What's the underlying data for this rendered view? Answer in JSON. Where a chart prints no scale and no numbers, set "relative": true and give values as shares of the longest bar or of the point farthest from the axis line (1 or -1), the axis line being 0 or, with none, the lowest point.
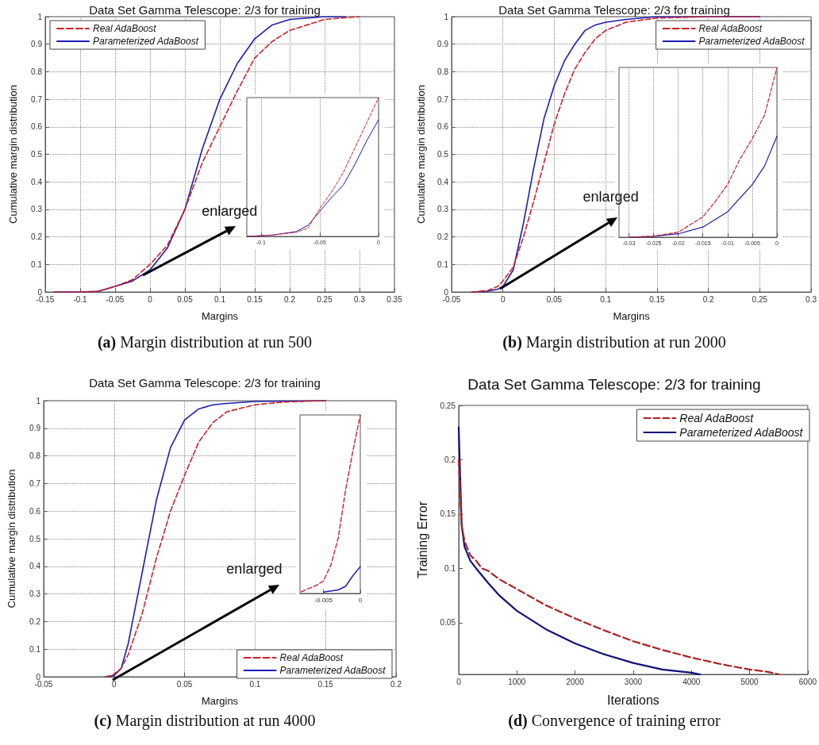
{
  "chart_data": [
    {
      "type": "line",
      "title": "Data Set Gamma Telescope: 2/3 for training",
      "xlabel": "Margins",
      "ylabel": "Cumulative margin distribution",
      "annotations": [
        {
          "text": "enlarged",
          "x": -0.01,
          "y": 0.06
        },
        "(a) Margin distribution at run 500"
      ],
      "xlim": [
        -0.15,
        0.35
      ],
      "ylim": [
        0,
        1
      ],
      "xticks": [
        -0.15,
        -0.1,
        -0.05,
        0,
        0.05,
        0.1,
        0.15,
        0.2,
        0.25,
        0.3,
        0.35
      ],
      "yticks": [
        0,
        0.1,
        0.2,
        0.3,
        0.4,
        0.5,
        0.6,
        0.7,
        0.8,
        0.9,
        1
      ],
      "grid": true,
      "legend": "top left",
      "marker": "none",
      "series": [
        {
          "name": "Real AdaBoost",
          "color": "#d02028",
          "line_style": "dashed",
          "x": [
            -0.137,
            -0.1,
            -0.075,
            -0.05,
            -0.025,
            0,
            0.025,
            0.05,
            0.075,
            0.1,
            0.125,
            0.15,
            0.175,
            0.2,
            0.25,
            0.3
          ],
          "values": [
            0,
            0,
            0.002,
            0.02,
            0.045,
            0.1,
            0.17,
            0.3,
            0.47,
            0.6,
            0.73,
            0.85,
            0.91,
            0.95,
            0.99,
            1
          ]
        },
        {
          "name": "Parameterized AdaBoost",
          "color": "#1c1cb4",
          "line_style": "solid",
          "x": [
            -0.137,
            -0.1,
            -0.075,
            -0.05,
            -0.025,
            0,
            0.025,
            0.05,
            0.075,
            0.1,
            0.125,
            0.15,
            0.175,
            0.2,
            0.25,
            0.28
          ],
          "values": [
            0,
            0,
            0.002,
            0.02,
            0.04,
            0.08,
            0.16,
            0.3,
            0.52,
            0.7,
            0.83,
            0.92,
            0.97,
            0.99,
            1,
            1
          ]
        }
      ]
    },
    {
      "type": "line",
      "relative": true,
      "tick_labels": "x",
      "xlim": [
        -0.112,
        0
      ],
      "xticks": [
        -0.1,
        -0.05,
        0
      ],
      "grid": "x",
      "marker": "none",
      "series": [
        {
          "color": "#d02028",
          "line_style": "dashed",
          "x": [
            -0.112,
            -0.09,
            -0.07,
            -0.06,
            -0.05,
            -0.04,
            -0.03,
            -0.02,
            -0.01,
            0
          ],
          "values": [
            0,
            0.01,
            0.03,
            0.06,
            0.2,
            0.32,
            0.46,
            0.64,
            0.82,
            1
          ]
        },
        {
          "color": "#1c1cb4",
          "line_style": "solid",
          "x": [
            -0.112,
            -0.09,
            -0.07,
            -0.06,
            -0.05,
            -0.04,
            -0.03,
            -0.02,
            -0.01,
            0
          ],
          "values": [
            0,
            0.01,
            0.035,
            0.08,
            0.18,
            0.28,
            0.37,
            0.52,
            0.69,
            0.84
          ]
        }
      ]
    },
    {
      "type": "line",
      "title": "Data Set Gamma Telescope: 2/3 for training",
      "xlabel": "Margins",
      "ylabel": "Cumulative margin distribution",
      "annotations": [
        {
          "text": "enlarged",
          "x": -0.003,
          "y": 0.012
        },
        "(b) Margin distribution at run 2000"
      ],
      "xlim": [
        -0.05,
        0.3
      ],
      "ylim": [
        0,
        1
      ],
      "xticks": [
        -0.05,
        0,
        0.05,
        0.1,
        0.15,
        0.2,
        0.25,
        0.3
      ],
      "yticks": [
        0,
        0.1,
        0.2,
        0.3,
        0.4,
        0.5,
        0.6,
        0.7,
        0.8,
        0.9,
        1
      ],
      "grid": true,
      "legend": "top right",
      "marker": "none",
      "series": [
        {
          "name": "Real AdaBoost",
          "color": "#d02028",
          "line_style": "dashed",
          "x": [
            -0.03,
            -0.015,
            -0.005,
            0,
            0.01,
            0.02,
            0.03,
            0.04,
            0.05,
            0.06,
            0.07,
            0.08,
            0.09,
            0.1,
            0.12,
            0.15,
            0.2,
            0.25
          ],
          "values": [
            0,
            0.005,
            0.02,
            0.04,
            0.09,
            0.2,
            0.33,
            0.47,
            0.61,
            0.72,
            0.81,
            0.87,
            0.92,
            0.95,
            0.98,
            0.995,
            1,
            1
          ]
        },
        {
          "name": "Parameterized AdaBoost",
          "color": "#1c1cb4",
          "line_style": "solid",
          "x": [
            -0.03,
            -0.015,
            -0.005,
            0,
            0.01,
            0.02,
            0.03,
            0.04,
            0.05,
            0.06,
            0.07,
            0.08,
            0.09,
            0.1,
            0.12,
            0.15,
            0.2,
            0.25
          ],
          "values": [
            0,
            0.003,
            0.01,
            0.02,
            0.08,
            0.25,
            0.45,
            0.63,
            0.75,
            0.84,
            0.9,
            0.95,
            0.97,
            0.98,
            0.99,
            1,
            1,
            1
          ]
        }
      ]
    },
    {
      "type": "line",
      "relative": true,
      "tick_labels": "x",
      "xlim": [
        -0.032,
        0
      ],
      "xticks": [
        -0.03,
        -0.025,
        -0.02,
        -0.015,
        -0.01,
        -0.005,
        0
      ],
      "grid": "x",
      "marker": "none",
      "series": [
        {
          "color": "#d02028",
          "line_style": "dashed",
          "x": [
            -0.03,
            -0.025,
            -0.02,
            -0.015,
            -0.0125,
            -0.01,
            -0.0075,
            -0.005,
            -0.0025,
            0
          ],
          "values": [
            0,
            0.006,
            0.03,
            0.12,
            0.21,
            0.31,
            0.46,
            0.58,
            0.72,
            1
          ]
        },
        {
          "color": "#1c1cb4",
          "line_style": "solid",
          "x": [
            -0.03,
            -0.025,
            -0.02,
            -0.015,
            -0.01,
            -0.005,
            -0.0025,
            0
          ],
          "values": [
            0,
            0.005,
            0.02,
            0.06,
            0.15,
            0.31,
            0.42,
            0.595
          ]
        }
      ]
    },
    {
      "type": "line",
      "title": "Data Set Gamma Telescope: 2/3 for training",
      "xlabel": "Margins",
      "ylabel": "Cumulative margin distribution",
      "annotations": [
        {
          "text": "enlarged",
          "x": 0.001,
          "y": 0.007
        },
        "(c) Margin distribution at run 4000"
      ],
      "xlim": [
        -0.05,
        0.2
      ],
      "ylim": [
        0,
        1
      ],
      "xticks": [
        -0.05,
        0,
        0.05,
        0.1,
        0.15,
        0.2
      ],
      "yticks": [
        0,
        0.1,
        0.2,
        0.3,
        0.4,
        0.5,
        0.6,
        0.7,
        0.8,
        0.9,
        1
      ],
      "grid": true,
      "legend": "bottom right",
      "marker": "none",
      "series": [
        {
          "name": "Real AdaBoost",
          "color": "#d02028",
          "line_style": "dashed",
          "x": [
            -0.006,
            -0.002,
            0,
            0.005,
            0.01,
            0.02,
            0.03,
            0.04,
            0.05,
            0.06,
            0.07,
            0.08,
            0.1,
            0.12,
            0.15
          ],
          "values": [
            0,
            0.005,
            0.01,
            0.03,
            0.08,
            0.23,
            0.43,
            0.6,
            0.73,
            0.85,
            0.92,
            0.96,
            0.985,
            0.995,
            1
          ]
        },
        {
          "name": "Parameterized AdaBoost",
          "color": "#1c1cb4",
          "line_style": "solid",
          "x": [
            -0.006,
            -0.002,
            0,
            0.005,
            0.01,
            0.02,
            0.03,
            0.04,
            0.05,
            0.06,
            0.07,
            0.08,
            0.1,
            0.15
          ],
          "values": [
            0,
            0.003,
            0.005,
            0.03,
            0.12,
            0.38,
            0.64,
            0.83,
            0.93,
            0.97,
            0.985,
            0.99,
            0.997,
            1
          ]
        }
      ]
    },
    {
      "type": "line",
      "relative": true,
      "tick_labels": "x",
      "xlim": [
        -0.0082,
        0
      ],
      "xticks": [
        -0.005,
        0
      ],
      "grid": false,
      "marker": "none",
      "series": [
        {
          "color": "#d02028",
          "line_style": "dashed",
          "x": [
            -0.008,
            -0.006,
            -0.005,
            -0.004,
            -0.003,
            -0.002,
            -0.001,
            0
          ],
          "values": [
            0.01,
            0.045,
            0.07,
            0.16,
            0.31,
            0.58,
            0.8,
            1
          ]
        },
        {
          "color": "#1c1cb4",
          "line_style": "solid",
          "x": [
            -0.005,
            -0.003,
            -0.002,
            -0.001,
            0
          ],
          "values": [
            0.008,
            0.02,
            0.04,
            0.1,
            0.15
          ]
        }
      ]
    },
    {
      "type": "line",
      "title": "Data Set Gamma Telescope: 2/3 for training",
      "xlabel": "Iterations",
      "ylabel": "Training Error",
      "annotations": [
        "(d) Convergence of training error"
      ],
      "xlim": [
        0,
        6000
      ],
      "ylim": [
        0.0025,
        0.25
      ],
      "xticks": [
        0,
        1000,
        2000,
        3000,
        4000,
        5000,
        6000
      ],
      "yticks": [
        0.05,
        0.1,
        0.15,
        0.2,
        0.25
      ],
      "grid": false,
      "legend": "top right",
      "marker": "none",
      "series": [
        {
          "name": "Real AdaBoost",
          "color": "#b02020",
          "line_style": "dashed",
          "x": [
            0,
            50,
            100,
            200,
            300,
            400,
            500,
            700,
            1000,
            1500,
            2000,
            2500,
            3000,
            3500,
            4000,
            4500,
            5000,
            5300,
            5500
          ],
          "values": [
            0.2,
            0.14,
            0.125,
            0.112,
            0.107,
            0.1,
            0.098,
            0.09,
            0.081,
            0.066,
            0.054,
            0.043,
            0.033,
            0.025,
            0.018,
            0.012,
            0.007,
            0.005,
            0.0025
          ]
        },
        {
          "name": "Parameterized AdaBoost",
          "color": "#10107c",
          "line_style": "solid",
          "x": [
            0,
            50,
            100,
            200,
            300,
            500,
            700,
            1000,
            1500,
            2000,
            2500,
            3000,
            3500,
            4000,
            4150
          ],
          "values": [
            0.23,
            0.14,
            0.12,
            0.107,
            0.1,
            0.087,
            0.075,
            0.061,
            0.044,
            0.031,
            0.021,
            0.013,
            0.007,
            0.004,
            0.0025
          ]
        }
      ]
    }
  ]
}
